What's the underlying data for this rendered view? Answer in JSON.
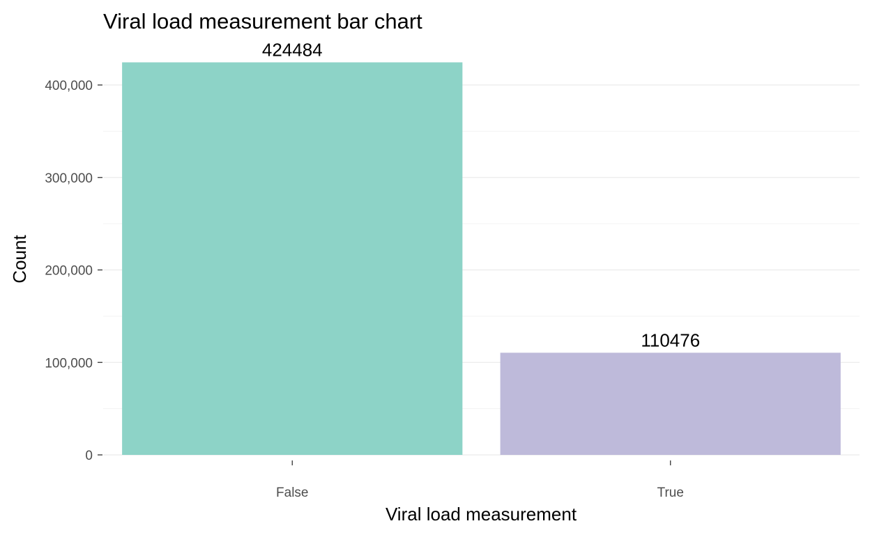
{
  "chart_data": {
    "type": "bar",
    "title": "Viral load measurement bar chart",
    "xlabel": "Viral load measurement",
    "ylabel": "Count",
    "categories": [
      "False",
      "True"
    ],
    "values": [
      424484,
      110476
    ],
    "value_labels": [
      "424484",
      "110476"
    ],
    "colors": [
      "#8dd3c7",
      "#bebada"
    ],
    "ylim": [
      0,
      424484
    ],
    "y_ticks": [
      0,
      100000,
      200000,
      300000,
      400000
    ],
    "y_tick_labels": [
      "0",
      "100,000",
      "200,000",
      "300,000",
      "400,000"
    ],
    "grid": true,
    "gridline_color": "#ebebeb",
    "legend": "none"
  }
}
